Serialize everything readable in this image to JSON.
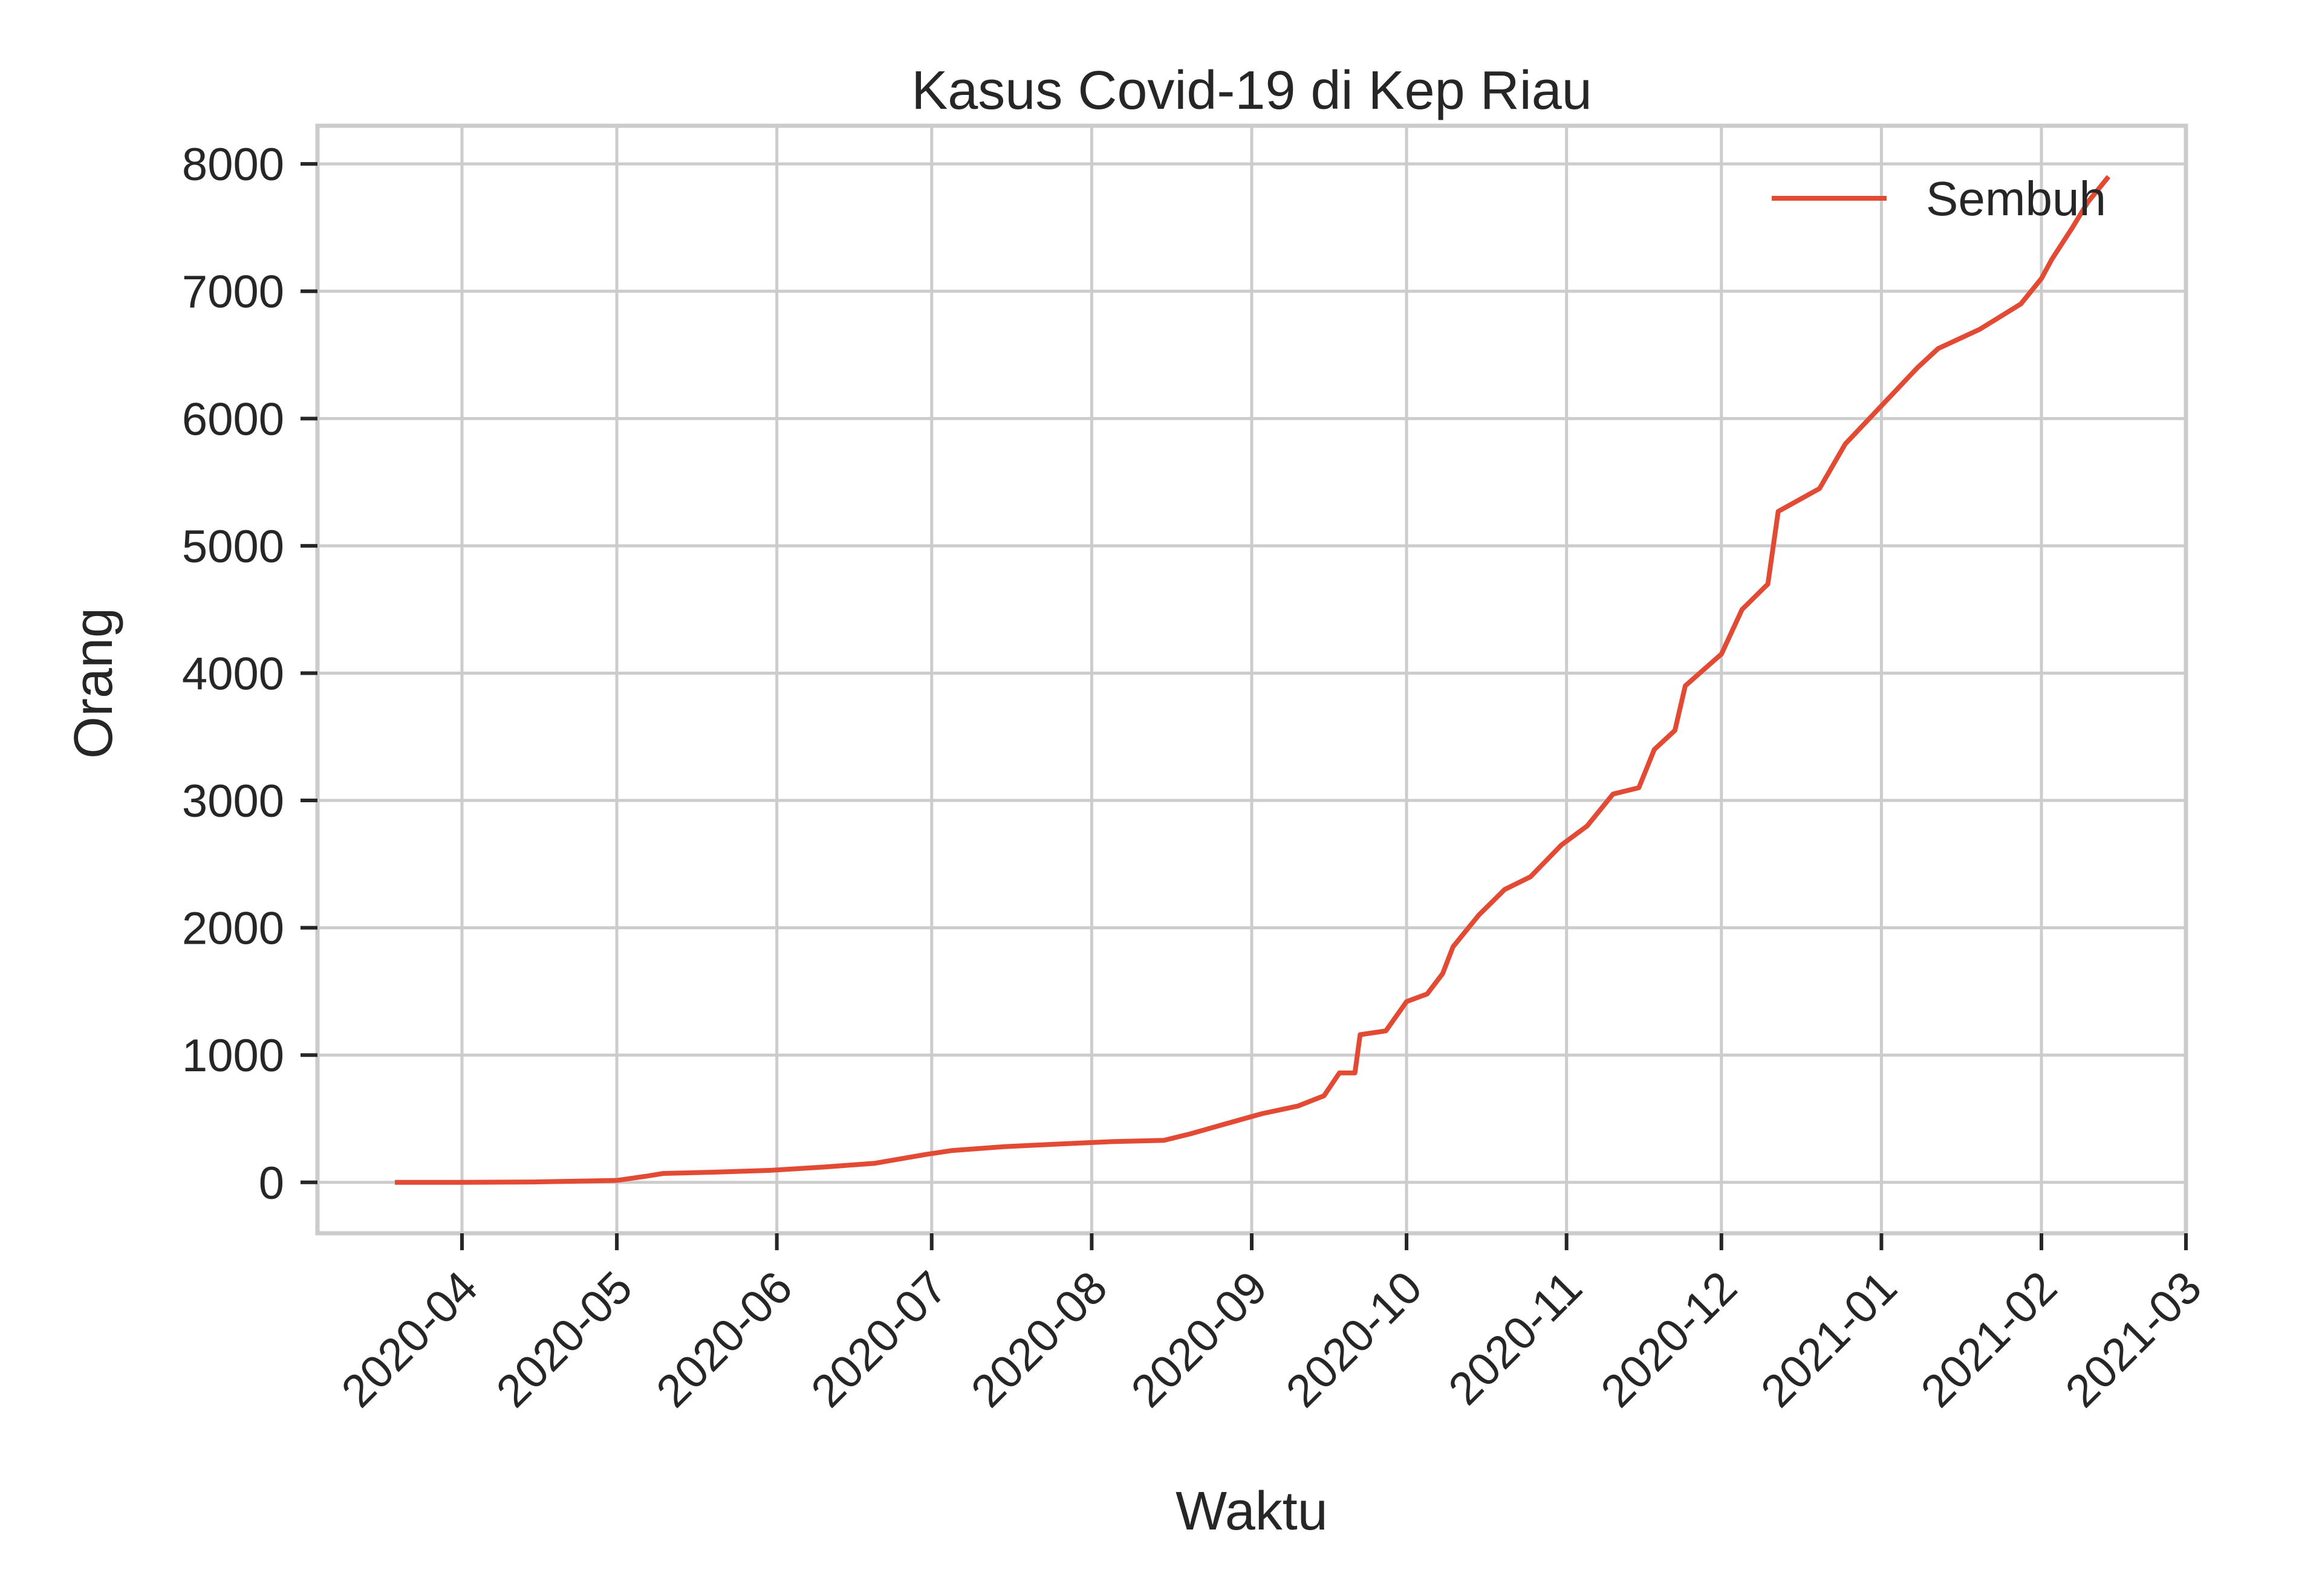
{
  "chart_data": {
    "type": "line",
    "title": "Kasus Covid-19 di Kep Riau",
    "xlabel": "Waktu",
    "ylabel": "Orang",
    "x_ticks": [
      "2020-04",
      "2020-05",
      "2020-06",
      "2020-07",
      "2020-08",
      "2020-09",
      "2020-10",
      "2020-11",
      "2020-12",
      "2021-01",
      "2021-02",
      "2021-03"
    ],
    "y_ticks": [
      0,
      1000,
      2000,
      3000,
      4000,
      5000,
      6000,
      7000,
      8000
    ],
    "xlim": [
      "2020-03-04",
      "2021-03-01"
    ],
    "ylim": [
      -400,
      8300
    ],
    "grid": true,
    "legend_position": "top-right",
    "series": [
      {
        "name": "Sembuh",
        "color": "#e24a33",
        "points": [
          [
            "2020-03-19",
            0
          ],
          [
            "2020-03-31",
            0
          ],
          [
            "2020-04-15",
            3
          ],
          [
            "2020-05-01",
            15
          ],
          [
            "2020-05-07",
            50
          ],
          [
            "2020-05-10",
            70
          ],
          [
            "2020-05-20",
            80
          ],
          [
            "2020-05-31",
            95
          ],
          [
            "2020-06-10",
            120
          ],
          [
            "2020-06-20",
            150
          ],
          [
            "2020-06-30",
            220
          ],
          [
            "2020-07-05",
            250
          ],
          [
            "2020-07-15",
            280
          ],
          [
            "2020-07-25",
            300
          ],
          [
            "2020-08-05",
            320
          ],
          [
            "2020-08-15",
            330
          ],
          [
            "2020-08-20",
            380
          ],
          [
            "2020-08-27",
            460
          ],
          [
            "2020-09-03",
            540
          ],
          [
            "2020-09-10",
            600
          ],
          [
            "2020-09-15",
            680
          ],
          [
            "2020-09-18",
            860
          ],
          [
            "2020-09-21",
            860
          ],
          [
            "2020-09-22",
            1160
          ],
          [
            "2020-09-27",
            1190
          ],
          [
            "2020-10-01",
            1420
          ],
          [
            "2020-10-05",
            1480
          ],
          [
            "2020-10-08",
            1640
          ],
          [
            "2020-10-10",
            1850
          ],
          [
            "2020-10-15",
            2100
          ],
          [
            "2020-10-20",
            2300
          ],
          [
            "2020-10-25",
            2400
          ],
          [
            "2020-10-31",
            2650
          ],
          [
            "2020-11-05",
            2800
          ],
          [
            "2020-11-10",
            3050
          ],
          [
            "2020-11-15",
            3100
          ],
          [
            "2020-11-18",
            3400
          ],
          [
            "2020-11-22",
            3550
          ],
          [
            "2020-11-24",
            3900
          ],
          [
            "2020-12-01",
            4150
          ],
          [
            "2020-12-05",
            4500
          ],
          [
            "2020-12-10",
            4700
          ],
          [
            "2020-12-12",
            5270
          ],
          [
            "2020-12-20",
            5450
          ],
          [
            "2020-12-25",
            5800
          ],
          [
            "2021-01-01",
            6100
          ],
          [
            "2021-01-08",
            6400
          ],
          [
            "2021-01-12",
            6550
          ],
          [
            "2021-01-20",
            6700
          ],
          [
            "2021-01-28",
            6900
          ],
          [
            "2021-02-01",
            7100
          ],
          [
            "2021-02-03",
            7250
          ],
          [
            "2021-02-07",
            7500
          ],
          [
            "2021-02-10",
            7700
          ],
          [
            "2021-02-14",
            7900
          ]
        ]
      }
    ]
  }
}
